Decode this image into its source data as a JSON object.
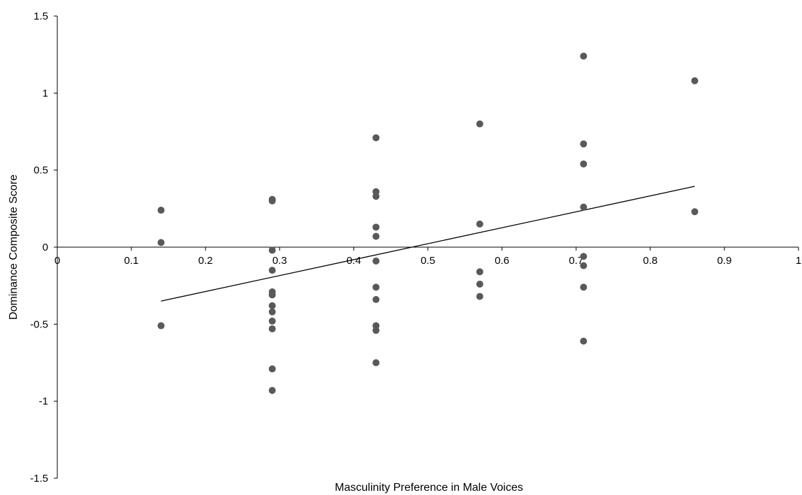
{
  "chart_data": {
    "type": "scatter",
    "title": "",
    "xlabel": "Masculinity Preference in Male Voices",
    "ylabel": "Dominance Composite Score",
    "xlim": [
      0,
      1
    ],
    "ylim": [
      -1.5,
      1.5
    ],
    "xticks": [
      "0",
      "0.1",
      "0.2",
      "0.3",
      "0.4",
      "0.5",
      "0.6",
      "0.7",
      "0.8",
      "0.9",
      "1"
    ],
    "yticks": [
      "1.5",
      "1",
      "0.5",
      "0",
      "-0.5",
      "-1",
      "-1.5"
    ],
    "grid": false,
    "marker_color": "#595959",
    "trendline_color": "#000000",
    "trendline": {
      "x": [
        0.14,
        0.86
      ],
      "y": [
        -0.35,
        0.395
      ]
    },
    "points": [
      [
        0.14,
        0.24
      ],
      [
        0.14,
        0.03
      ],
      [
        0.14,
        -0.51
      ],
      [
        0.29,
        0.31
      ],
      [
        0.29,
        0.3
      ],
      [
        0.29,
        -0.02
      ],
      [
        0.29,
        -0.15
      ],
      [
        0.29,
        -0.29
      ],
      [
        0.29,
        -0.31
      ],
      [
        0.29,
        -0.38
      ],
      [
        0.29,
        -0.42
      ],
      [
        0.29,
        -0.48
      ],
      [
        0.29,
        -0.53
      ],
      [
        0.29,
        -0.79
      ],
      [
        0.29,
        -0.93
      ],
      [
        0.43,
        0.71
      ],
      [
        0.43,
        0.36
      ],
      [
        0.43,
        0.33
      ],
      [
        0.43,
        0.13
      ],
      [
        0.43,
        0.07
      ],
      [
        0.43,
        -0.09
      ],
      [
        0.43,
        -0.26
      ],
      [
        0.43,
        -0.34
      ],
      [
        0.43,
        -0.51
      ],
      [
        0.43,
        -0.54
      ],
      [
        0.43,
        -0.75
      ],
      [
        0.57,
        0.8
      ],
      [
        0.57,
        0.15
      ],
      [
        0.57,
        -0.16
      ],
      [
        0.57,
        -0.24
      ],
      [
        0.57,
        -0.32
      ],
      [
        0.71,
        1.24
      ],
      [
        0.71,
        0.67
      ],
      [
        0.71,
        0.54
      ],
      [
        0.71,
        0.26
      ],
      [
        0.71,
        -0.06
      ],
      [
        0.71,
        -0.12
      ],
      [
        0.71,
        -0.26
      ],
      [
        0.71,
        -0.61
      ],
      [
        0.86,
        1.08
      ],
      [
        0.86,
        0.23
      ]
    ]
  }
}
